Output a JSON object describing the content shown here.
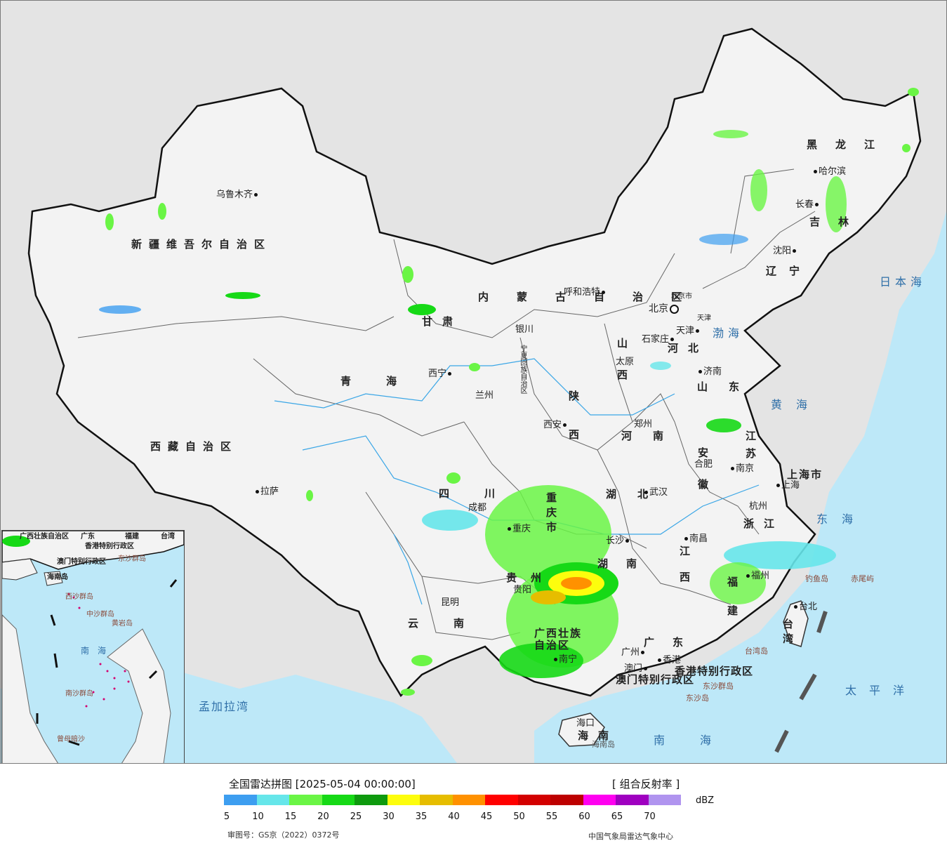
{
  "map": {
    "cities": [
      {
        "name": "乌鲁木齐",
        "pos": "r"
      },
      {
        "name": "呼和浩特",
        "pos": "r"
      },
      {
        "name": "哈尔滨",
        "pos": "r"
      },
      {
        "name": "长春",
        "pos": "l"
      },
      {
        "name": "沈阳",
        "pos": "l"
      },
      {
        "name": "北京",
        "pos": "l"
      },
      {
        "name": "天津",
        "pos": "l"
      },
      {
        "name": "石家庄",
        "pos": "l"
      },
      {
        "name": "太原",
        "pos": "l"
      },
      {
        "name": "济南",
        "pos": "r"
      },
      {
        "name": "银川",
        "pos": "l"
      },
      {
        "name": "西宁",
        "pos": "l"
      },
      {
        "name": "兰州",
        "pos": "l"
      },
      {
        "name": "西安",
        "pos": "l"
      },
      {
        "name": "郑州",
        "pos": "l"
      },
      {
        "name": "合肥",
        "pos": "l"
      },
      {
        "name": "南京",
        "pos": "r"
      },
      {
        "name": "上海",
        "pos": "r"
      },
      {
        "name": "杭州",
        "pos": "l"
      },
      {
        "name": "武汉",
        "pos": "r"
      },
      {
        "name": "成都",
        "pos": "l"
      },
      {
        "name": "重庆",
        "pos": "l"
      },
      {
        "name": "长沙",
        "pos": "l"
      },
      {
        "name": "南昌",
        "pos": "r"
      },
      {
        "name": "福州",
        "pos": "r"
      },
      {
        "name": "拉萨",
        "pos": "r"
      },
      {
        "name": "贵阳",
        "pos": "l"
      },
      {
        "name": "昆明",
        "pos": "l"
      },
      {
        "name": "南宁",
        "pos": "r"
      },
      {
        "name": "广州",
        "pos": "l"
      },
      {
        "name": "澳门",
        "pos": "l"
      },
      {
        "name": "香港",
        "pos": "r"
      },
      {
        "name": "台北",
        "pos": "r"
      },
      {
        "name": "海口",
        "pos": "r"
      }
    ],
    "regions": [
      "新疆维吾尔自治区",
      "西藏自治区",
      "青海",
      "甘肃",
      "内蒙古自治区",
      "黑龙江",
      "吉林",
      "辽宁",
      "河北",
      "山西",
      "山东",
      "河南",
      "陕西",
      "宁夏回族自治区",
      "四川",
      "重庆市",
      "湖北",
      "安徽",
      "江苏",
      "上海市",
      "浙江",
      "江西",
      "湖南",
      "贵州",
      "云南",
      "广西壮族自治区",
      "广东",
      "福建",
      "台湾",
      "海南",
      "北京市",
      "天津",
      "香港特别行政区",
      "澳门特别行政区"
    ],
    "seas": [
      "日本海",
      "渤海",
      "黄海",
      "东海",
      "太平洋",
      "南海",
      "孟加拉湾"
    ],
    "islands": [
      "钓鱼岛",
      "赤尾屿",
      "台湾岛",
      "东沙群岛",
      "东沙岛",
      "海南岛"
    ],
    "inset_labels": [
      "广西壮族自治区",
      "广东",
      "福建",
      "台湾",
      "香港特别行政区",
      "澳门特别行政区",
      "东沙群岛",
      "海南岛",
      "西沙群岛",
      "中沙群岛",
      "黄岩岛",
      "南海",
      "南沙群岛",
      "曾母暗沙"
    ]
  },
  "legend": {
    "title": "全国雷达拼图 [2025-05-04 00:00:00]",
    "product": "[ 组合反射率 ]",
    "unit": "dBZ",
    "colors": [
      "#3d9ef0",
      "#66e6ea",
      "#6af545",
      "#16d916",
      "#0e9a0e",
      "#fdfd0d",
      "#e6bd00",
      "#ff9100",
      "#ff0000",
      "#d30000",
      "#bd0000",
      "#ff00f0",
      "#9f00c0",
      "#b094ef"
    ],
    "ticks": [
      "5",
      "10",
      "15",
      "20",
      "25",
      "30",
      "35",
      "40",
      "45",
      "50",
      "55",
      "60",
      "65",
      "70"
    ],
    "approval": "审图号：GS京（2022）0372号",
    "source": "中国气象局雷达气象中心"
  }
}
